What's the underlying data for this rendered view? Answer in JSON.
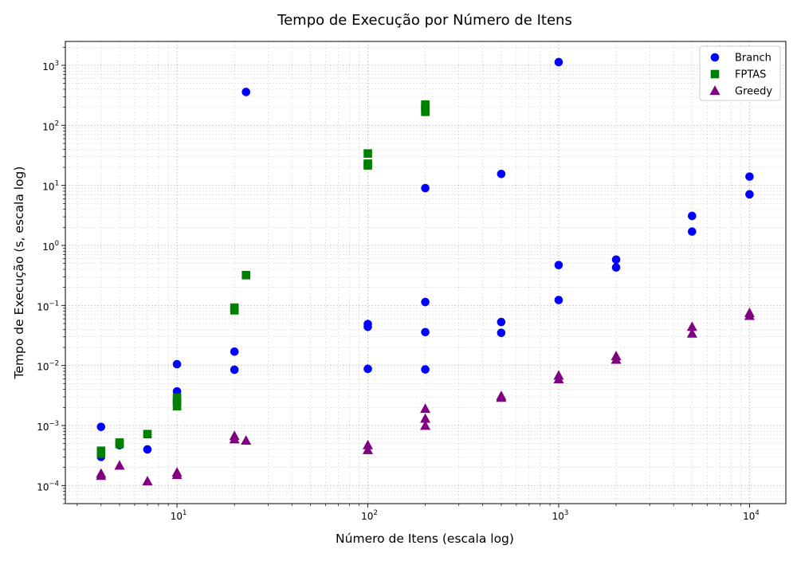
{
  "chart_data": {
    "type": "scatter",
    "title": "Tempo de Execução por Número de Itens",
    "xlabel": "Número de Itens (escala log)",
    "ylabel": "Tempo de Execução (s, escala log)",
    "xscale": "log",
    "yscale": "log",
    "xlim": [
      2.6,
      15500
    ],
    "ylim": [
      5e-05,
      2500
    ],
    "grid": "major and minor, dotted",
    "legend_position": "top-right",
    "x_ticks": [
      {
        "value": 10,
        "base": "10",
        "exp": "1"
      },
      {
        "value": 100,
        "base": "10",
        "exp": "2"
      },
      {
        "value": 1000,
        "base": "10",
        "exp": "3"
      },
      {
        "value": 10000,
        "base": "10",
        "exp": "4"
      }
    ],
    "y_ticks": [
      {
        "value": 0.0001,
        "base": "10",
        "exp": "−4"
      },
      {
        "value": 0.001,
        "base": "10",
        "exp": "−3"
      },
      {
        "value": 0.01,
        "base": "10",
        "exp": "−2"
      },
      {
        "value": 0.1,
        "base": "10",
        "exp": "−1"
      },
      {
        "value": 1,
        "base": "10",
        "exp": "0"
      },
      {
        "value": 10,
        "base": "10",
        "exp": "1"
      },
      {
        "value": 100,
        "base": "10",
        "exp": "2"
      },
      {
        "value": 1000,
        "base": "10",
        "exp": "3"
      }
    ],
    "series": [
      {
        "name": "Branch",
        "color": "#0000ff",
        "marker": "circle",
        "points": [
          {
            "x": 4,
            "y": 0.00095
          },
          {
            "x": 4,
            "y": 0.0003
          },
          {
            "x": 5,
            "y": 0.00047
          },
          {
            "x": 7,
            "y": 0.0004
          },
          {
            "x": 10,
            "y": 0.0105
          },
          {
            "x": 10,
            "y": 0.0037
          },
          {
            "x": 20,
            "y": 0.017
          },
          {
            "x": 20,
            "y": 0.0085
          },
          {
            "x": 23,
            "y": 360
          },
          {
            "x": 100,
            "y": 0.049
          },
          {
            "x": 100,
            "y": 0.044
          },
          {
            "x": 100,
            "y": 0.0088
          },
          {
            "x": 200,
            "y": 9
          },
          {
            "x": 200,
            "y": 0.114
          },
          {
            "x": 200,
            "y": 0.036
          },
          {
            "x": 200,
            "y": 0.0086
          },
          {
            "x": 500,
            "y": 15.5
          },
          {
            "x": 500,
            "y": 0.053
          },
          {
            "x": 500,
            "y": 0.035
          },
          {
            "x": 1000,
            "y": 1130
          },
          {
            "x": 1000,
            "y": 0.47
          },
          {
            "x": 1000,
            "y": 0.123
          },
          {
            "x": 2000,
            "y": 0.58
          },
          {
            "x": 2000,
            "y": 0.43
          },
          {
            "x": 5000,
            "y": 3.1
          },
          {
            "x": 5000,
            "y": 1.7
          },
          {
            "x": 10000,
            "y": 14
          },
          {
            "x": 10000,
            "y": 7.1
          }
        ]
      },
      {
        "name": "FPTAS",
        "color": "#008000",
        "marker": "square",
        "points": [
          {
            "x": 4,
            "y": 0.00038
          },
          {
            "x": 4,
            "y": 0.00034
          },
          {
            "x": 5,
            "y": 0.00052
          },
          {
            "x": 5,
            "y": 0.00049
          },
          {
            "x": 7,
            "y": 0.00072
          },
          {
            "x": 10,
            "y": 0.0029
          },
          {
            "x": 10,
            "y": 0.0025
          },
          {
            "x": 10,
            "y": 0.0021
          },
          {
            "x": 20,
            "y": 0.092
          },
          {
            "x": 20,
            "y": 0.083
          },
          {
            "x": 23,
            "y": 0.32
          },
          {
            "x": 100,
            "y": 34
          },
          {
            "x": 100,
            "y": 23
          },
          {
            "x": 100,
            "y": 21.5
          },
          {
            "x": 200,
            "y": 222
          },
          {
            "x": 200,
            "y": 195
          },
          {
            "x": 200,
            "y": 168
          }
        ]
      },
      {
        "name": "Greedy",
        "color": "#800080",
        "marker": "triangle",
        "points": [
          {
            "x": 4,
            "y": 0.000158
          },
          {
            "x": 4,
            "y": 0.000145
          },
          {
            "x": 5,
            "y": 0.000215
          },
          {
            "x": 7,
            "y": 0.000118
          },
          {
            "x": 10,
            "y": 0.000165
          },
          {
            "x": 10,
            "y": 0.00015
          },
          {
            "x": 20,
            "y": 0.00067
          },
          {
            "x": 20,
            "y": 0.00059
          },
          {
            "x": 23,
            "y": 0.00056
          },
          {
            "x": 100,
            "y": 0.00047
          },
          {
            "x": 100,
            "y": 0.00039
          },
          {
            "x": 200,
            "y": 0.0019
          },
          {
            "x": 200,
            "y": 0.0013
          },
          {
            "x": 200,
            "y": 0.00099
          },
          {
            "x": 500,
            "y": 0.0031
          },
          {
            "x": 500,
            "y": 0.0029
          },
          {
            "x": 1000,
            "y": 0.0068
          },
          {
            "x": 1000,
            "y": 0.0059
          },
          {
            "x": 2000,
            "y": 0.0143
          },
          {
            "x": 2000,
            "y": 0.0125
          },
          {
            "x": 5000,
            "y": 0.044
          },
          {
            "x": 5000,
            "y": 0.034
          },
          {
            "x": 10000,
            "y": 0.075
          },
          {
            "x": 10000,
            "y": 0.067
          }
        ]
      }
    ]
  }
}
